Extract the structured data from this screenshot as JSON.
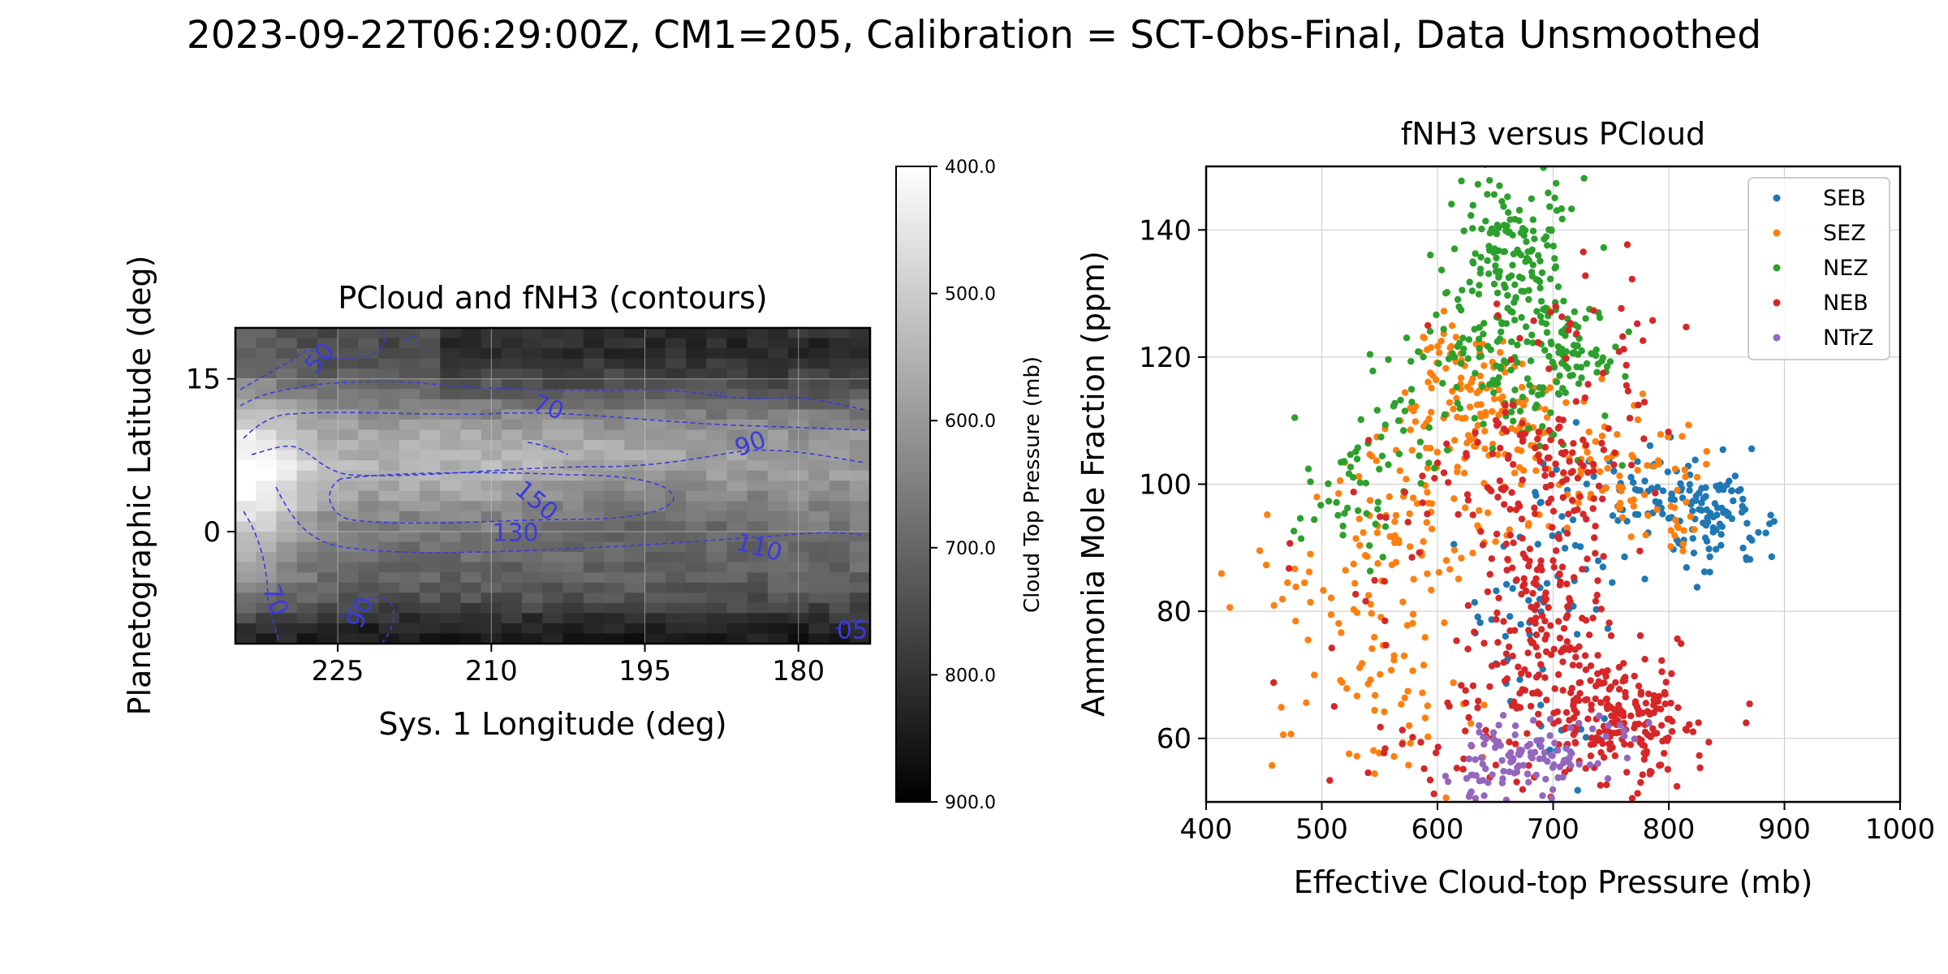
{
  "suptitle": "2023-09-22T06:29:00Z, CM1=205, Calibration = SCT-Obs-Final, Data Unsmoothed",
  "chart_data": [
    {
      "type": "heatmap",
      "title": "PCloud and fNH3 (contours)",
      "xlabel": "Sys. 1 Longitude (deg)",
      "ylabel": "Planetographic Latitude (deg)",
      "xlim": [
        235,
        173
      ],
      "ylim": [
        -11,
        20
      ],
      "xticks": [
        225,
        210,
        195,
        180
      ],
      "yticks": [
        15,
        0
      ],
      "grid": true,
      "colormap": "gray_r",
      "colorbar": {
        "label": "Cloud Top Pressure (mb)",
        "range": [
          400,
          900
        ],
        "ticks": [
          "400.0",
          "500.0",
          "600.0",
          "700.0",
          "800.0",
          "900.0"
        ]
      },
      "contour_color": "#3b3bdc",
      "contour_labels": [
        "50",
        "70",
        "90",
        "150",
        "130",
        "110",
        "70",
        "90",
        "05"
      ]
    },
    {
      "type": "scatter",
      "title": "fNH3 versus PCloud",
      "xlabel": "Effective Cloud-top Pressure (mb)",
      "ylabel": "Ammonia Mole Fraction (ppm)",
      "xlim": [
        400,
        1000
      ],
      "ylim": [
        50,
        150
      ],
      "xticks": [
        400,
        500,
        600,
        700,
        800,
        900,
        1000
      ],
      "yticks": [
        60,
        80,
        100,
        120,
        140
      ],
      "grid": true,
      "legend_position": "top-right",
      "series": [
        {
          "name": "SEB",
          "color": "#1f77b4",
          "clusters": [
            {
              "center": [
                840,
                95
              ],
              "spread": [
                20,
                4
              ],
              "n": 95
            },
            {
              "center": [
                790,
                99
              ],
              "spread": [
                28,
                4
              ],
              "n": 55
            },
            {
              "center": [
                720,
                92
              ],
              "spread": [
                22,
                8
              ],
              "n": 30
            },
            {
              "center": [
                660,
                78
              ],
              "spread": [
                25,
                6
              ],
              "n": 30
            },
            {
              "center": [
                705,
                60
              ],
              "spread": [
                30,
                5
              ],
              "n": 15
            }
          ]
        },
        {
          "name": "SEZ",
          "color": "#ff7f0e",
          "clusters": [
            {
              "center": [
                650,
                110
              ],
              "spread": [
                45,
                6
              ],
              "n": 130
            },
            {
              "center": [
                620,
                118
              ],
              "spread": [
                25,
                5
              ],
              "n": 40
            },
            {
              "center": [
                580,
                93
              ],
              "spread": [
                50,
                5
              ],
              "n": 80
            },
            {
              "center": [
                530,
                77
              ],
              "spread": [
                40,
                8
              ],
              "n": 60
            },
            {
              "center": [
                760,
                100
              ],
              "spread": [
                35,
                4
              ],
              "n": 60
            },
            {
              "center": [
                810,
                94
              ],
              "spread": [
                15,
                3
              ],
              "n": 15
            },
            {
              "center": [
                560,
                60
              ],
              "spread": [
                50,
                6
              ],
              "n": 25
            }
          ]
        },
        {
          "name": "NEZ",
          "color": "#2ca02c",
          "clusters": [
            {
              "center": [
                670,
                135
              ],
              "spread": [
                30,
                8
              ],
              "n": 180
            },
            {
              "center": [
                640,
                120
              ],
              "spread": [
                35,
                5
              ],
              "n": 60
            },
            {
              "center": [
                720,
                121
              ],
              "spread": [
                20,
                3
              ],
              "n": 60
            },
            {
              "center": [
                560,
                108
              ],
              "spread": [
                30,
                5
              ],
              "n": 35
            },
            {
              "center": [
                520,
                95
              ],
              "spread": [
                25,
                5
              ],
              "n": 30
            },
            {
              "center": [
                690,
                112
              ],
              "spread": [
                30,
                4
              ],
              "n": 30
            }
          ]
        },
        {
          "name": "NEB",
          "color": "#d62728",
          "clusters": [
            {
              "center": [
                760,
                63
              ],
              "spread": [
                28,
                5
              ],
              "n": 180
            },
            {
              "center": [
                700,
                68
              ],
              "spread": [
                35,
                8
              ],
              "n": 120
            },
            {
              "center": [
                690,
                85
              ],
              "spread": [
                35,
                7
              ],
              "n": 90
            },
            {
              "center": [
                690,
                103
              ],
              "spread": [
                40,
                5
              ],
              "n": 110
            },
            {
              "center": [
                710,
                125
              ],
              "spread": [
                40,
                5
              ],
              "n": 25
            },
            {
              "center": [
                590,
                60
              ],
              "spread": [
                70,
                6
              ],
              "n": 40
            },
            {
              "center": [
                580,
                90
              ],
              "spread": [
                60,
                10
              ],
              "n": 25
            },
            {
              "center": [
                770,
                125
              ],
              "spread": [
                20,
                7
              ],
              "n": 10
            }
          ]
        },
        {
          "name": "NTrZ",
          "color": "#9467bd",
          "clusters": [
            {
              "center": [
                680,
                57
              ],
              "spread": [
                28,
                3
              ],
              "n": 90
            },
            {
              "center": [
                760,
                60
              ],
              "spread": [
                15,
                2
              ],
              "n": 10
            },
            {
              "center": [
                640,
                53
              ],
              "spread": [
                15,
                2
              ],
              "n": 15
            }
          ]
        }
      ]
    }
  ]
}
